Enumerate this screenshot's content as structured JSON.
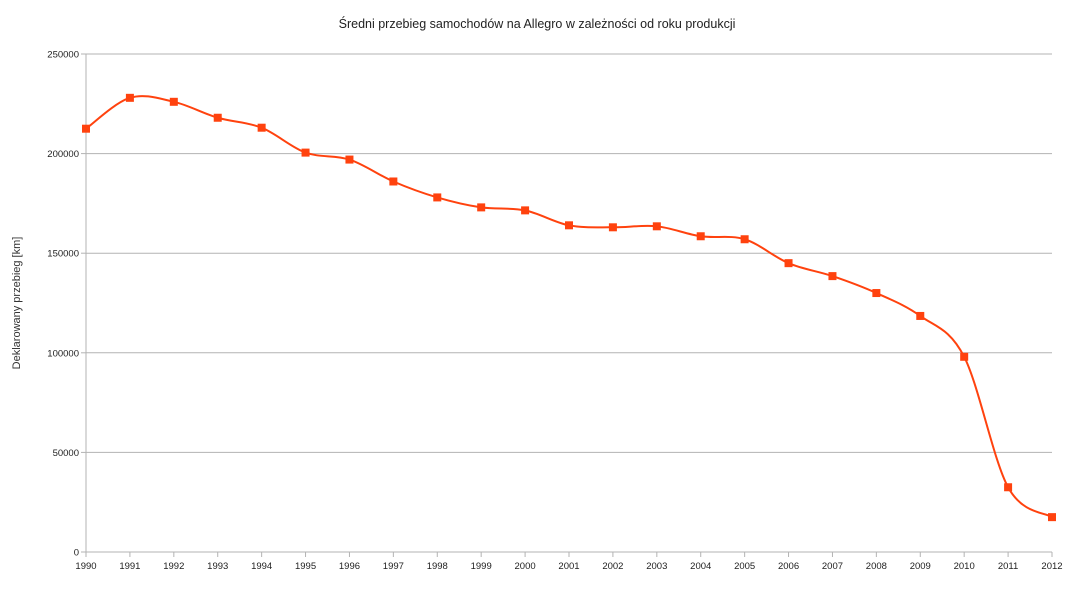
{
  "chart_data": {
    "type": "line",
    "title": "Średni przebieg samochodów na Allegro w zależności od roku produkcji",
    "xlabel": "",
    "ylabel": "Deklarowany przebieg [km]",
    "x": [
      "1990",
      "1991",
      "1992",
      "1993",
      "1994",
      "1995",
      "1996",
      "1997",
      "1998",
      "1999",
      "2000",
      "2001",
      "2002",
      "2003",
      "2004",
      "2005",
      "2006",
      "2007",
      "2008",
      "2009",
      "2010",
      "2011",
      "2012"
    ],
    "series": [
      {
        "values": [
          212500,
          228000,
          226000,
          218000,
          213000,
          200500,
          197000,
          186000,
          178000,
          173000,
          171500,
          164000,
          163000,
          163500,
          158500,
          157000,
          145000,
          138500,
          130000,
          118500,
          98000,
          32500,
          17500
        ],
        "color": "#ff420e",
        "marker": "square",
        "smooth": true
      }
    ],
    "ylim": [
      0,
      250000
    ],
    "yticks": [
      "0",
      "50000",
      "100000",
      "150000",
      "200000",
      "250000"
    ],
    "grid": "horizontal"
  },
  "colors": {
    "series": "#ff420e",
    "grid": "#b3b3b3",
    "axis": "#b3b3b3"
  }
}
